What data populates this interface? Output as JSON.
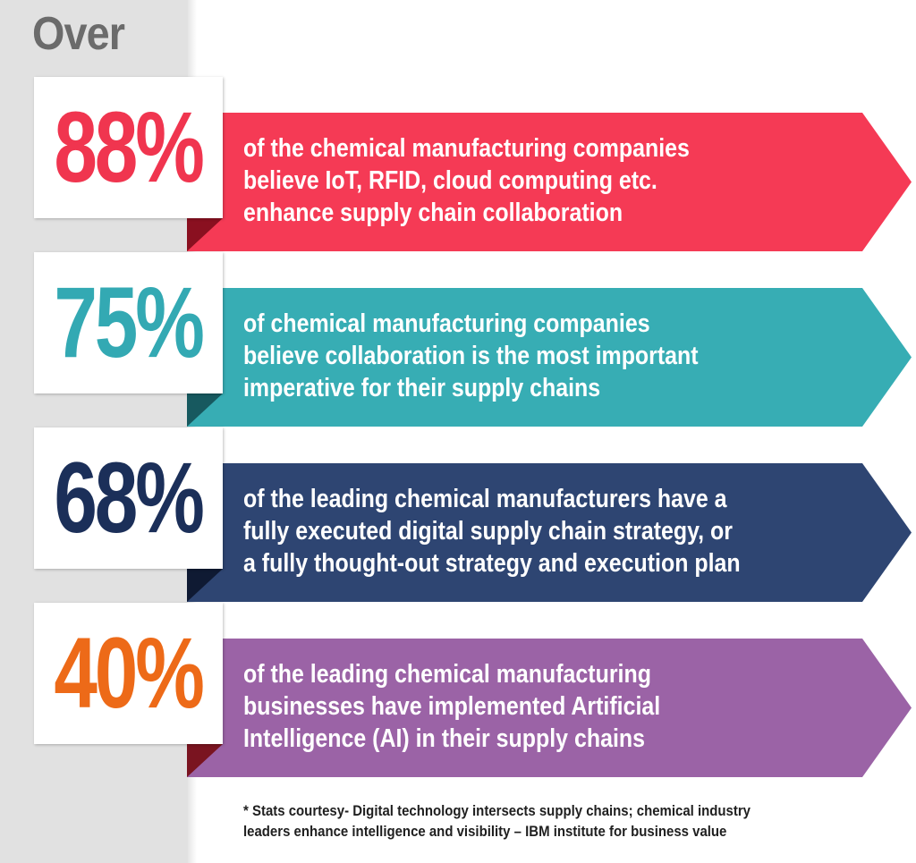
{
  "header": {
    "over_label": "Over"
  },
  "colors": {
    "background": "#ffffff",
    "side_column": "#e1e1e1",
    "over_text": "#6b6b6b"
  },
  "stats": [
    {
      "value": "88%",
      "value_color": "#f0354f",
      "band_color": "#f53a55",
      "fold_color": "#8a1020",
      "text": "of the chemical manufacturing companies\nbelieve IoT, RFID, cloud computing etc.\nenhance supply chain collaboration"
    },
    {
      "value": "75%",
      "value_color": "#33a9b3",
      "band_color": "#37adb4",
      "fold_color": "#17595f",
      "text": "of chemical manufacturing companies\nbelieve collaboration is the most important\nimperative for their supply chains"
    },
    {
      "value": "68%",
      "value_color": "#1b2f59",
      "band_color": "#2e4572",
      "fold_color": "#0f1a33",
      "text": "of the leading chemical manufacturers have a\nfully executed digital supply chain strategy, or\na fully thought-out strategy and execution plan"
    },
    {
      "value": "40%",
      "value_color": "#ed6a18",
      "band_color": "#9b63a6",
      "fold_color": "#7a1420",
      "text": "of the leading chemical manufacturing\nbusinesses have implemented Artificial\nIntelligence (AI) in their supply chains"
    }
  ],
  "footnote": "* Stats courtesy- Digital technology intersects supply chains; chemical industry\nleaders enhance intelligence and visibility – IBM institute for business value"
}
